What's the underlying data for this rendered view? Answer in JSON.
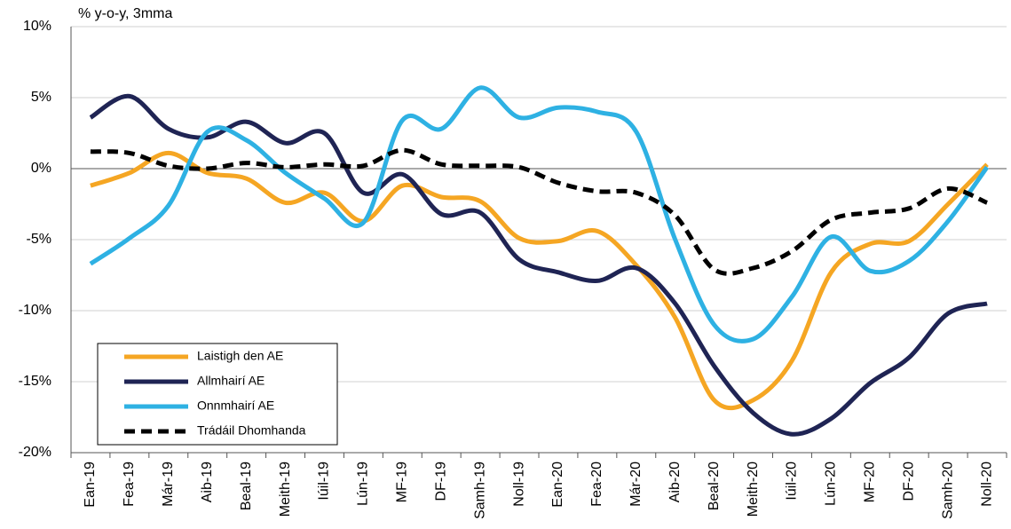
{
  "chart_data": {
    "type": "line",
    "y_label": "% y-o-y, 3mma",
    "categories": [
      "Ean-19",
      "Fea-19",
      "Már-19",
      "Aib-19",
      "Beal-19",
      "Meith-19",
      "Iúil-19",
      "Lún-19",
      "MF-19",
      "DF-19",
      "Samh-19",
      "Noll-19",
      "Ean-20",
      "Fea-20",
      "Már-20",
      "Aib-20",
      "Beal-20",
      "Meith-20",
      "Iúil-20",
      "Lún-20",
      "MF-20",
      "DF-20",
      "Samh-20",
      "Noll-20"
    ],
    "series": [
      {
        "name": "Laistigh den AE",
        "color": "#f5a623",
        "dash": false,
        "values": [
          -1.2,
          -0.3,
          1.1,
          -0.3,
          -0.7,
          -2.4,
          -1.7,
          -3.7,
          -1.2,
          -2.0,
          -2.3,
          -4.9,
          -5.1,
          -4.4,
          -6.8,
          -10.5,
          -16.3,
          -16.3,
          -13.5,
          -7.3,
          -5.3,
          -5.1,
          -2.5,
          0.3
        ]
      },
      {
        "name": "Allmhairí AE",
        "color": "#1f2454",
        "dash": false,
        "values": [
          3.6,
          5.1,
          2.8,
          2.2,
          3.3,
          1.8,
          2.5,
          -1.7,
          -0.4,
          -3.2,
          -3.1,
          -6.4,
          -7.3,
          -7.9,
          -7.0,
          -9.5,
          -13.9,
          -17.2,
          -18.7,
          -17.6,
          -15.1,
          -13.3,
          -10.2,
          -9.5
        ]
      },
      {
        "name": "Onnmhairí AE",
        "color": "#2eb1e3",
        "dash": false,
        "values": [
          -6.7,
          -4.9,
          -2.6,
          2.6,
          2.0,
          -0.3,
          -2.1,
          -3.8,
          3.4,
          2.8,
          5.7,
          3.6,
          4.3,
          4.0,
          2.6,
          -5.0,
          -11.0,
          -12.0,
          -9.0,
          -4.8,
          -7.2,
          -6.5,
          -3.7,
          0.1
        ]
      },
      {
        "name": "Trádáil Dhomhanda",
        "color": "#000000",
        "dash": true,
        "values": [
          1.2,
          1.1,
          0.2,
          0.0,
          0.4,
          0.1,
          0.3,
          0.2,
          1.3,
          0.3,
          0.2,
          0.1,
          -1.0,
          -1.6,
          -1.7,
          -3.3,
          -7.1,
          -7.0,
          -5.8,
          -3.6,
          -3.1,
          -2.8,
          -1.4,
          -2.4
        ]
      }
    ],
    "ylim": [
      -20,
      10
    ],
    "yticks": [
      {
        "value": -20,
        "label": "-20%"
      },
      {
        "value": -15,
        "label": "-15%"
      },
      {
        "value": -10,
        "label": "-10%"
      },
      {
        "value": -5,
        "label": "-5%"
      },
      {
        "value": 0,
        "label": "0%"
      },
      {
        "value": 5,
        "label": "5%"
      },
      {
        "value": 10,
        "label": "10%"
      }
    ],
    "grid": true,
    "legend": "lower left"
  }
}
